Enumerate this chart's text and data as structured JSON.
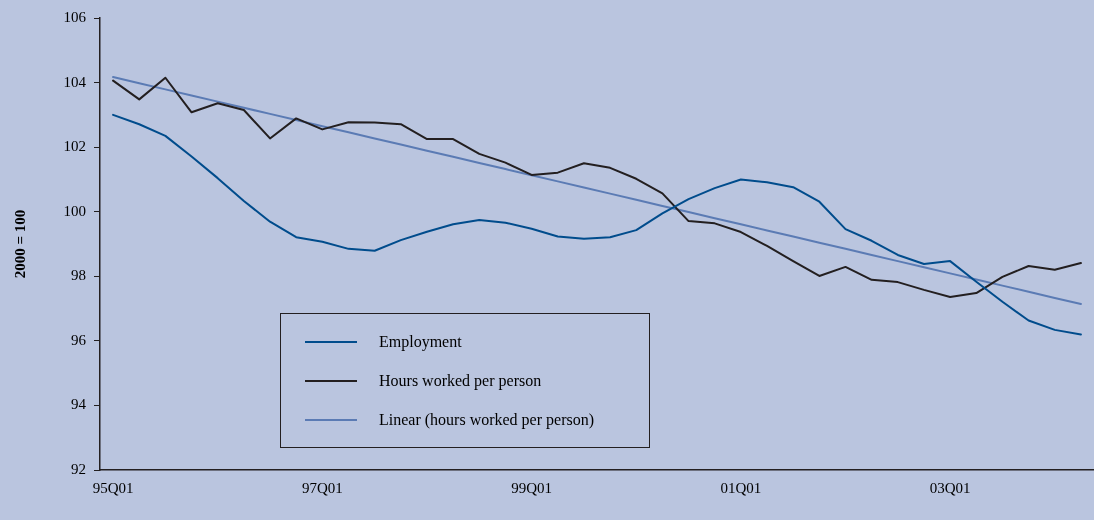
{
  "chart_data": {
    "type": "line",
    "ylabel": "2000 = 100",
    "categories": [
      "95Q01",
      null,
      null,
      null,
      null,
      null,
      null,
      null,
      "97Q01",
      null,
      null,
      null,
      null,
      null,
      null,
      null,
      "99Q01",
      null,
      null,
      null,
      null,
      null,
      null,
      null,
      "01Q01",
      null,
      null,
      null,
      null,
      null,
      null,
      null,
      "03Q01",
      null,
      null,
      null,
      null,
      null
    ],
    "series": [
      {
        "name": "Employment",
        "color": "#004c8c",
        "values": [
          103.0,
          102.71,
          102.35,
          101.71,
          101.04,
          100.33,
          99.69,
          99.21,
          99.07,
          98.85,
          98.79,
          99.12,
          99.38,
          99.61,
          99.74,
          99.66,
          99.47,
          99.23,
          99.16,
          99.21,
          99.43,
          99.95,
          100.39,
          100.73,
          101.0,
          100.91,
          100.76,
          100.31,
          99.46,
          99.1,
          98.66,
          98.38,
          98.47,
          97.83,
          97.21,
          96.63,
          96.34,
          96.2
        ]
      },
      {
        "name": "Hours worked per person",
        "color": "#231f20",
        "values": [
          104.06,
          103.48,
          104.15,
          103.08,
          103.36,
          103.15,
          102.27,
          102.89,
          102.55,
          102.77,
          102.76,
          102.71,
          102.25,
          102.25,
          101.79,
          101.52,
          101.14,
          101.21,
          101.5,
          101.36,
          101.02,
          100.57,
          99.71,
          99.64,
          99.37,
          98.94,
          98.47,
          98.01,
          98.29,
          97.89,
          97.82,
          97.58,
          97.36,
          97.48,
          97.98,
          98.32,
          98.2,
          98.41
        ]
      },
      {
        "name": "Linear (hours worked per person)",
        "color": "#5b7bb4",
        "values": [
          104.17,
          103.98,
          103.79,
          103.6,
          103.41,
          103.22,
          103.03,
          102.84,
          102.65,
          102.46,
          102.27,
          102.08,
          101.89,
          101.7,
          101.51,
          101.32,
          101.13,
          100.94,
          100.75,
          100.56,
          100.37,
          100.18,
          99.99,
          99.8,
          99.61,
          99.42,
          99.23,
          99.04,
          98.85,
          98.66,
          98.47,
          98.28,
          98.09,
          97.9,
          97.71,
          97.52,
          97.33,
          97.14
        ]
      }
    ],
    "ylim": [
      92,
      106
    ],
    "yticks": [
      92,
      94,
      96,
      98,
      100,
      102,
      104,
      106
    ],
    "grid": false,
    "legend": "bottom left",
    "marker": "none",
    "line_style": "solid"
  }
}
